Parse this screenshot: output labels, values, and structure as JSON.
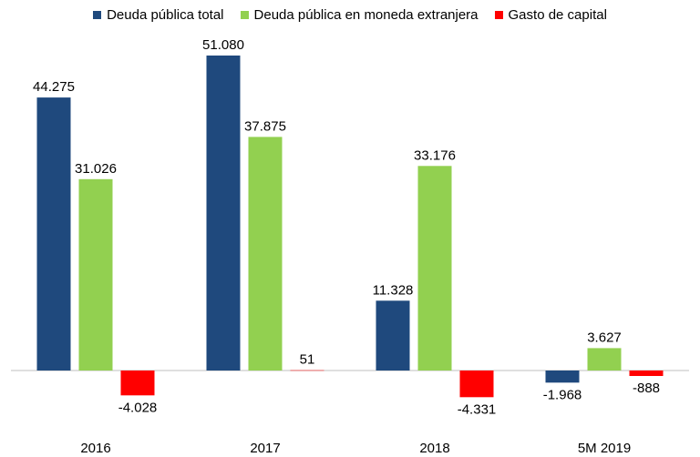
{
  "chart_data": {
    "type": "bar",
    "categories": [
      "2016",
      "2017",
      "2018",
      "5M 2019"
    ],
    "series": [
      {
        "name": "Deuda pública total",
        "color": "#1f497d",
        "values": [
          44275,
          51080,
          11328,
          -1968
        ],
        "labels": [
          "44.275",
          "51.080",
          "11.328",
          "-1.968"
        ]
      },
      {
        "name": "Deuda pública en moneda extranjera",
        "color": "#92d050",
        "values": [
          31026,
          37875,
          33176,
          3627
        ],
        "labels": [
          "31.026",
          "37.875",
          "33.176",
          "3.627"
        ]
      },
      {
        "name": "Gasto de capital",
        "color": "#ff0000",
        "values": [
          -4028,
          51,
          -4331,
          -888
        ],
        "labels": [
          "-4.028",
          "51",
          "-4.331",
          "-888"
        ]
      }
    ],
    "title": "",
    "xlabel": "",
    "ylabel": "",
    "ylim": [
      -6500,
      55000
    ],
    "grid": false,
    "legend_position": "top"
  }
}
